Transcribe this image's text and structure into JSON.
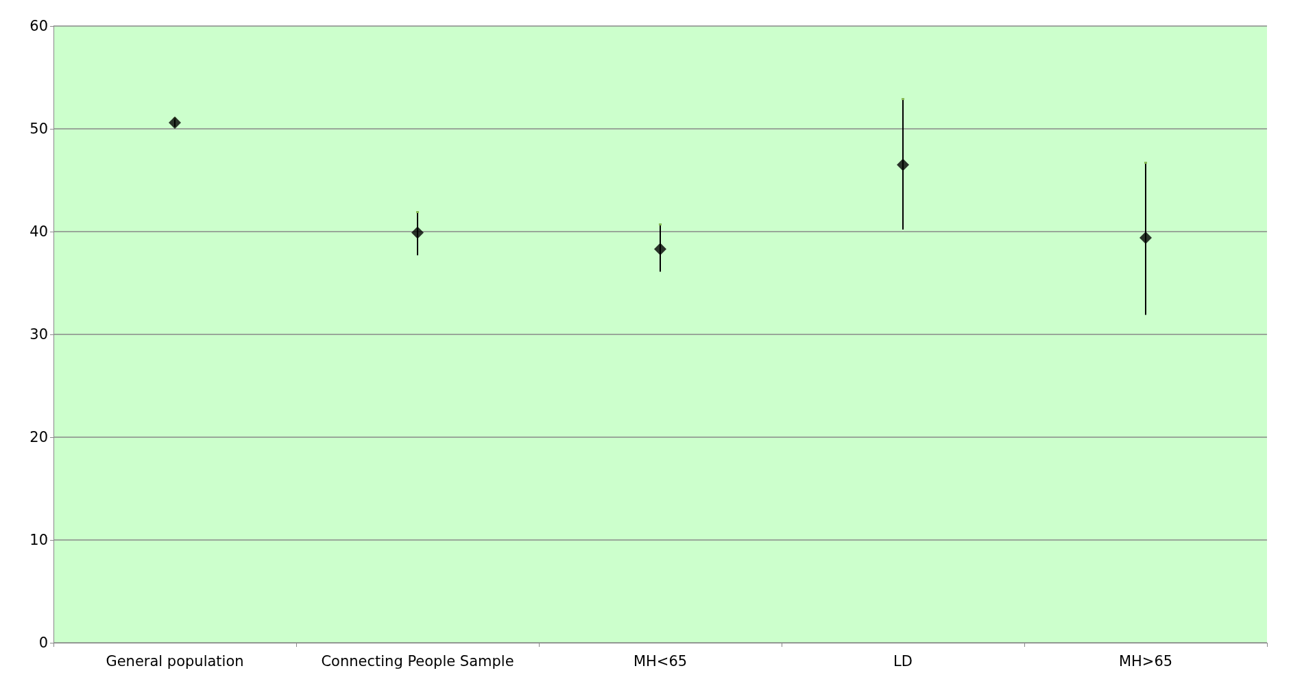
{
  "chart_data": {
    "type": "scatter",
    "categories": [
      "General population",
      "Connecting People Sample",
      "MH<65",
      "LD",
      "MH>65"
    ],
    "series": [
      {
        "color": "#000000",
        "values": [
          50.6,
          39.9,
          38.3,
          46.5,
          39.4
        ],
        "errors": [
          [
            50.2,
            51.0
          ],
          [
            37.7,
            41.9
          ],
          [
            36.1,
            40.7
          ],
          [
            40.2,
            52.9
          ],
          [
            31.9,
            46.7
          ]
        ]
      }
    ],
    "ylim": [
      0,
      60
    ],
    "yticks": [
      0,
      10,
      20,
      30,
      40,
      50,
      60
    ],
    "grid": "y",
    "marker": "diamond"
  }
}
